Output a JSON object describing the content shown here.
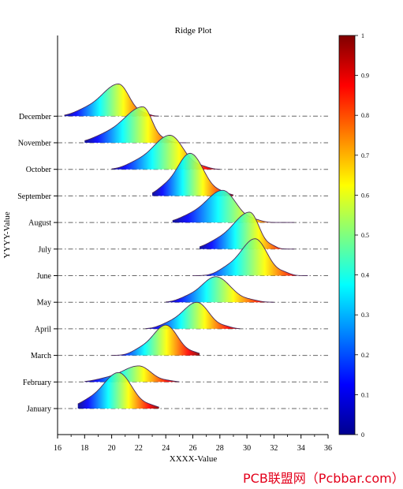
{
  "chart_data": {
    "type": "ridgeline",
    "title": "Ridge Plot",
    "xlabel": "XXXX-Value",
    "ylabel": "YYYY-Value",
    "xlim": [
      16,
      36
    ],
    "x_ticks": [
      16,
      18,
      20,
      22,
      24,
      26,
      28,
      30,
      32,
      34,
      36
    ],
    "categories": [
      "January",
      "February",
      "March",
      "April",
      "May",
      "June",
      "July",
      "August",
      "September",
      "October",
      "November",
      "December"
    ],
    "series": [
      {
        "name": "January",
        "peak": 20.5,
        "left_sd": 1.2,
        "right_sd": 1.0,
        "height": 1.9,
        "range": [
          17.5,
          23.5
        ]
      },
      {
        "name": "February",
        "peak": 22.0,
        "left_sd": 1.3,
        "right_sd": 0.9,
        "height": 0.85,
        "range": [
          18.0,
          25.0
        ]
      },
      {
        "name": "March",
        "peak": 24.0,
        "left_sd": 1.0,
        "right_sd": 0.9,
        "height": 1.6,
        "range": [
          20.0,
          26.5
        ]
      },
      {
        "name": "April",
        "peak": 26.3,
        "left_sd": 1.1,
        "right_sd": 0.9,
        "height": 1.4,
        "range": [
          22.5,
          29.5
        ]
      },
      {
        "name": "May",
        "peak": 27.7,
        "left_sd": 1.1,
        "right_sd": 1.1,
        "height": 1.35,
        "range": [
          24.0,
          32.0
        ]
      },
      {
        "name": "June",
        "peak": 30.6,
        "left_sd": 1.1,
        "right_sd": 0.9,
        "height": 1.95,
        "range": [
          26.0,
          34.5
        ]
      },
      {
        "name": "July",
        "peak": 30.2,
        "left_sd": 1.3,
        "right_sd": 0.7,
        "height": 1.95,
        "range": [
          26.5,
          33.5
        ]
      },
      {
        "name": "August",
        "peak": 28.2,
        "left_sd": 1.3,
        "right_sd": 1.0,
        "height": 1.7,
        "range": [
          24.5,
          33.5
        ]
      },
      {
        "name": "September",
        "peak": 25.8,
        "left_sd": 1.0,
        "right_sd": 1.0,
        "height": 2.25,
        "range": [
          23.0,
          29.0
        ]
      },
      {
        "name": "October",
        "peak": 24.3,
        "left_sd": 1.3,
        "right_sd": 1.0,
        "height": 1.8,
        "range": [
          20.0,
          28.0
        ]
      },
      {
        "name": "November",
        "peak": 22.3,
        "left_sd": 1.5,
        "right_sd": 0.7,
        "height": 1.9,
        "range": [
          18.0,
          25.5
        ]
      },
      {
        "name": "December",
        "peak": 20.5,
        "left_sd": 1.3,
        "right_sd": 0.8,
        "height": 1.7,
        "range": [
          16.5,
          23.5
        ]
      }
    ],
    "colorbar": {
      "range": [
        0,
        1
      ],
      "ticks": [
        "0",
        "0.1",
        "0.2",
        "0.3",
        "0.4",
        "0.5",
        "0.6",
        "0.7",
        "0.8",
        "0.9",
        "1"
      ],
      "colormap": "jet"
    },
    "baseline_style": "dash-dot",
    "grid": false
  },
  "watermark": "PCB联盟网（Pcbbar.com）"
}
